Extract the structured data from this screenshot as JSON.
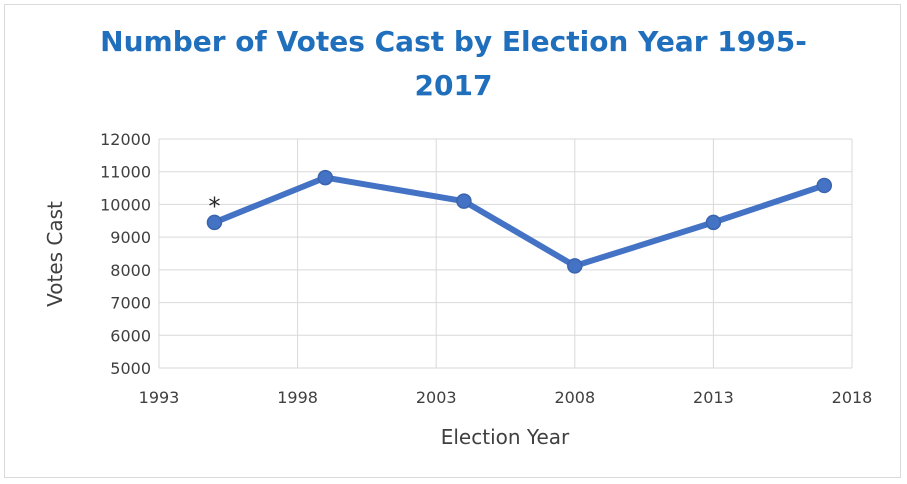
{
  "chart_data": {
    "type": "line",
    "title_line1": "Number of Votes Cast by Election Year 1995-",
    "title_line2": "2017",
    "xlabel": "Election Year",
    "ylabel": "Votes Cast",
    "xlim": [
      1993,
      2018
    ],
    "ylim": [
      5000,
      12000
    ],
    "x_ticks": [
      1993,
      1998,
      2003,
      2008,
      2013,
      2018
    ],
    "y_ticks": [
      5000,
      6000,
      7000,
      8000,
      9000,
      10000,
      11000,
      12000
    ],
    "grid": true,
    "legend": "none",
    "series": [
      {
        "x": [
          1995,
          1999,
          2004,
          2008,
          2013,
          2017
        ],
        "y": [
          9450,
          10820,
          10100,
          8120,
          9450,
          10580
        ],
        "color": "#4472c4"
      }
    ],
    "annotations": [
      {
        "text": "*",
        "x": 1995,
        "y": 9450
      }
    ]
  }
}
